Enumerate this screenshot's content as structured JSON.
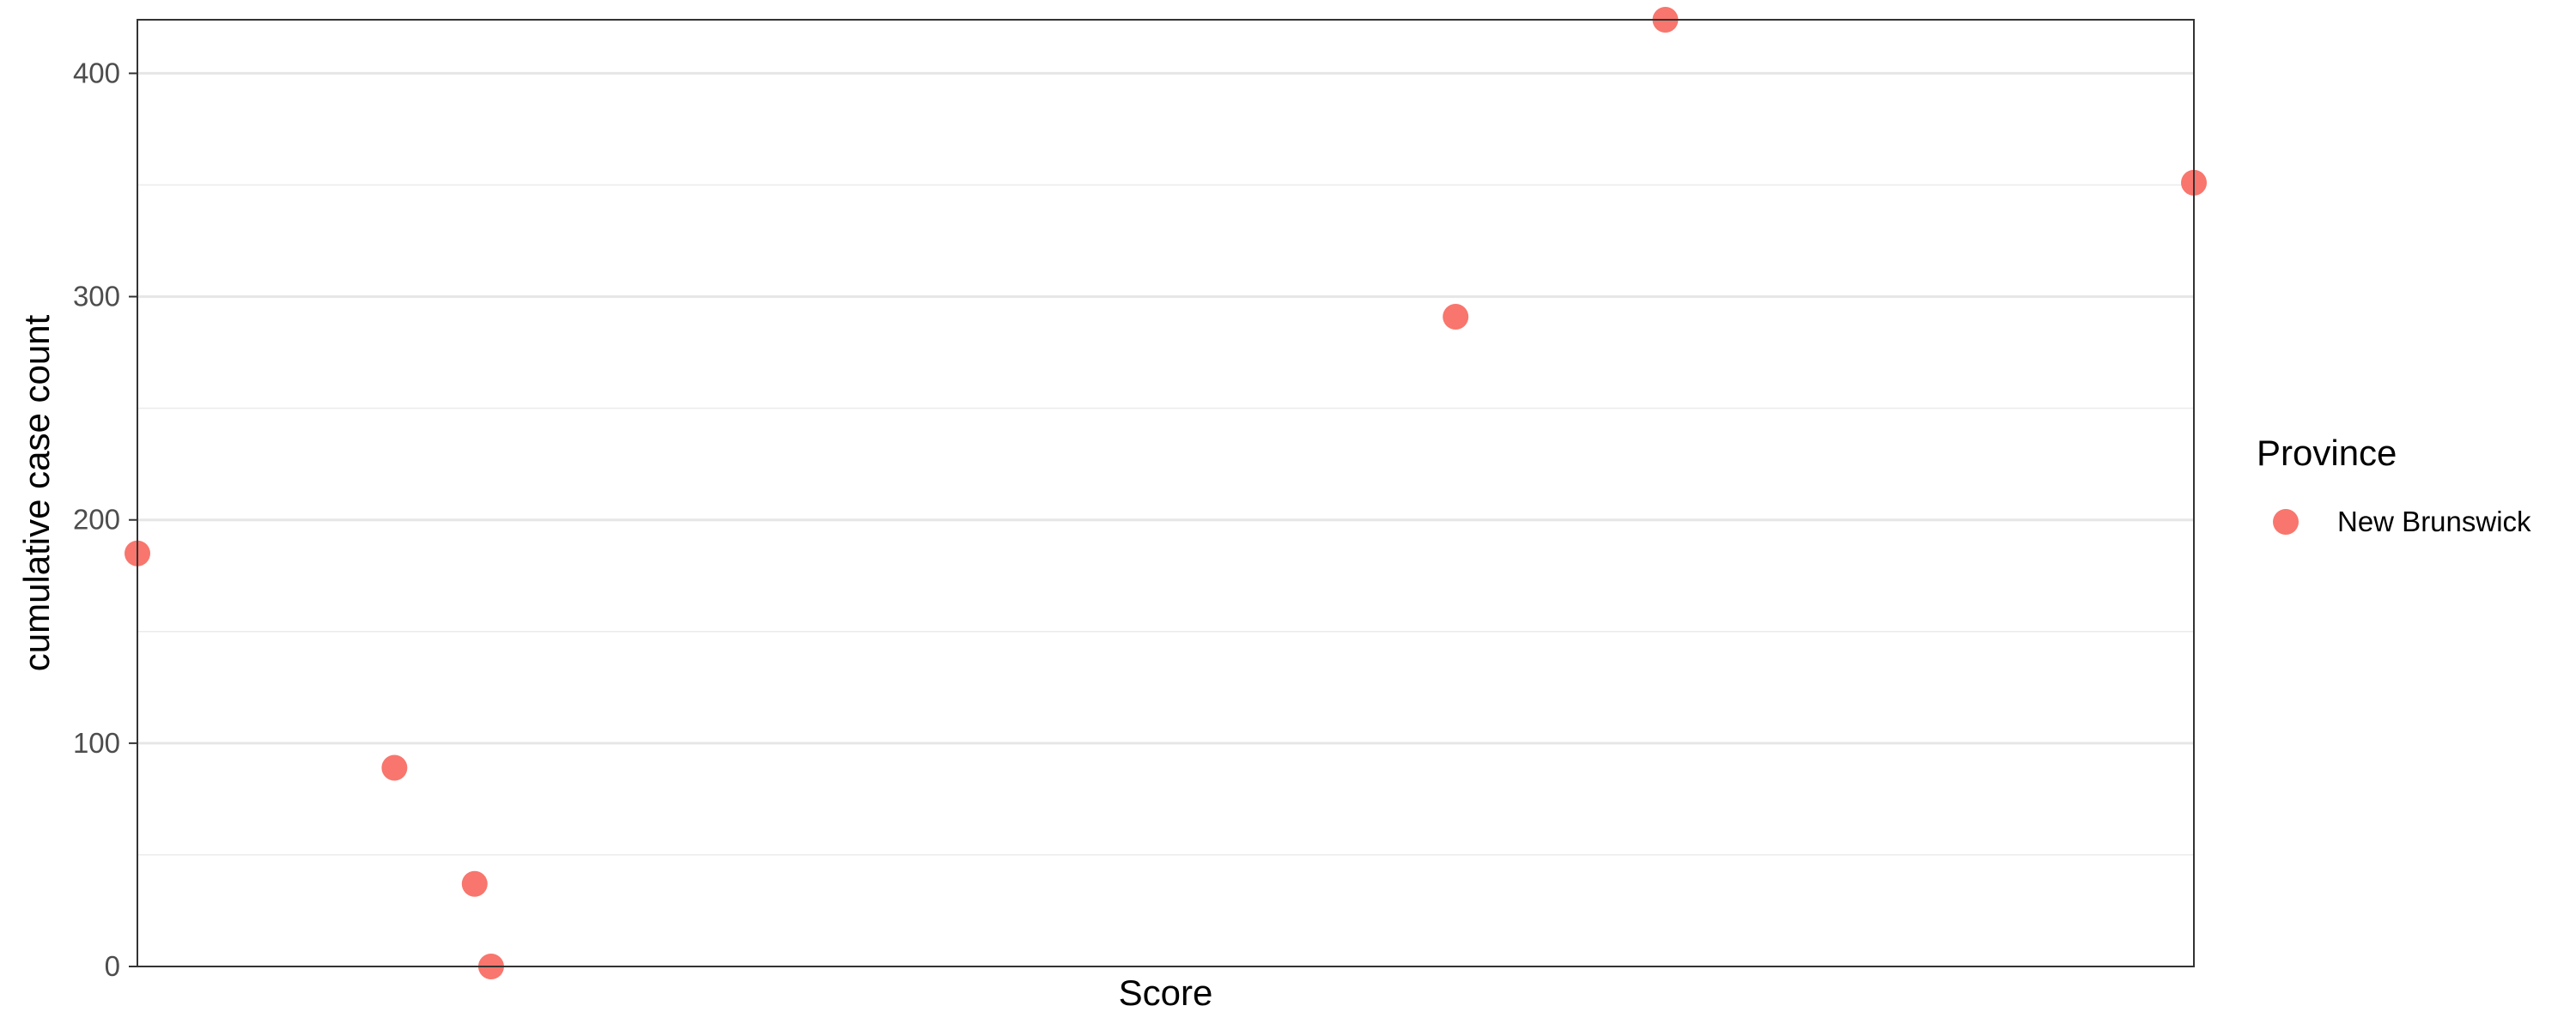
{
  "chart_data": {
    "type": "scatter",
    "title": "",
    "xlabel": "Score",
    "ylabel": "cumulative case count",
    "x_ticks_shown": false,
    "ylim": [
      0,
      424
    ],
    "y_ticks": [
      0,
      100,
      200,
      300,
      400
    ],
    "y_tick_labels": [
      "0",
      "100",
      "200",
      "300",
      "400"
    ],
    "grid": true,
    "legend": {
      "title": "Province",
      "placement": "right"
    },
    "series": [
      {
        "name": "New Brunswick",
        "color": "#F8766D",
        "points": [
          {
            "x": 0.0,
            "y": 185
          },
          {
            "x": 0.125,
            "y": 89
          },
          {
            "x": 0.164,
            "y": 37
          },
          {
            "x": 0.172,
            "y": 0
          },
          {
            "x": 0.641,
            "y": 291
          },
          {
            "x": 0.743,
            "y": 424
          },
          {
            "x": 1.0,
            "y": 351
          }
        ]
      }
    ]
  }
}
